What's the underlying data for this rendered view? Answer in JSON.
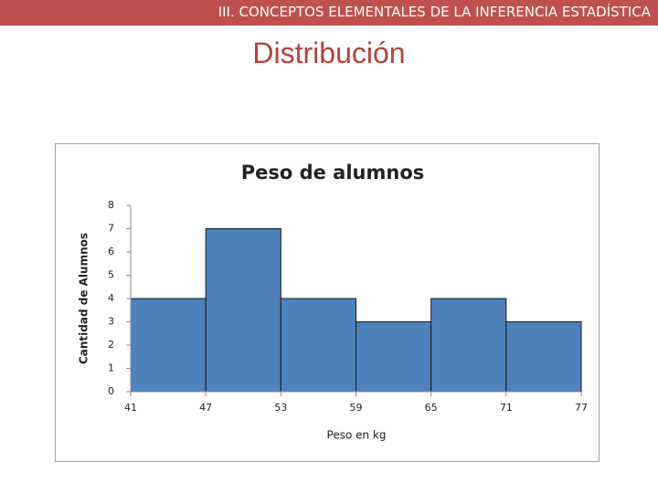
{
  "header": {
    "title": "III. CONCEPTOS ELEMENTALES DE LA INFERENCIA ESTADÍSTICA"
  },
  "slide_title": "Distribución",
  "chart_data": {
    "type": "histogram",
    "title": "Peso de alumnos",
    "xlabel": "Peso en kg",
    "ylabel": "Cantidad de Alumnos",
    "bins": [
      41,
      47,
      53,
      59,
      65,
      71,
      77
    ],
    "values": [
      4,
      7,
      4,
      3,
      4,
      3
    ],
    "color": "#4f81bd",
    "xlim": [
      41,
      77
    ],
    "xticks": [
      41,
      47,
      53,
      59,
      65,
      71,
      77
    ],
    "ylim": [
      0,
      8
    ],
    "yticks": [
      0,
      1,
      2,
      3,
      4,
      5,
      6,
      7,
      8
    ]
  }
}
